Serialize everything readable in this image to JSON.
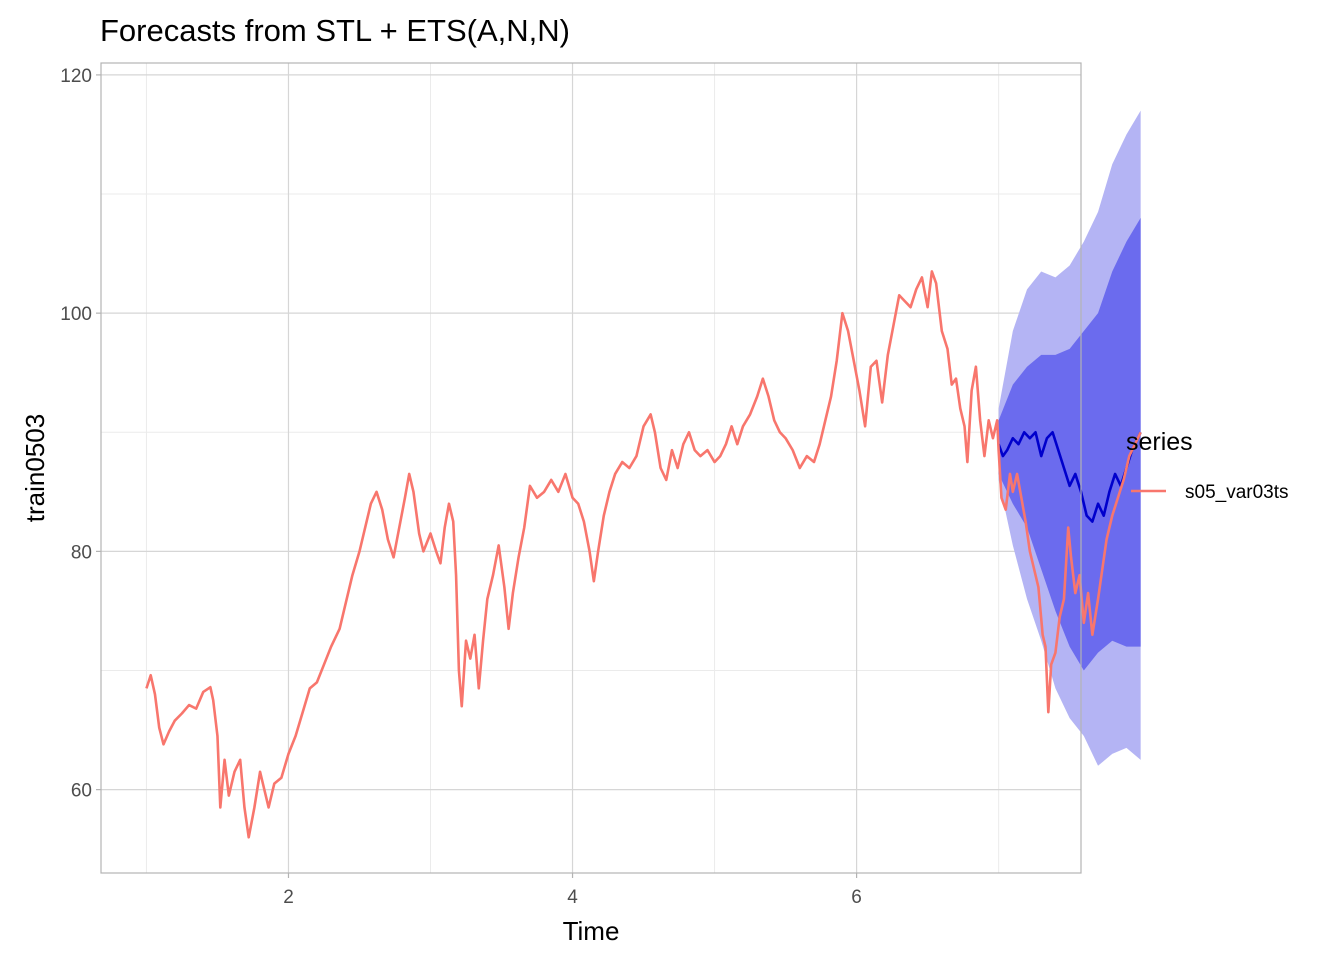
{
  "chart_data": {
    "type": "line",
    "title": "Forecasts from STL +  ETS(A,N,N)",
    "xlabel": "Time",
    "ylabel": "train0503",
    "xlim": [
      0.68,
      7.58
    ],
    "ylim": [
      53,
      121
    ],
    "x_ticks": [
      2,
      4,
      6
    ],
    "y_ticks": [
      60,
      80,
      100,
      120
    ],
    "grid": true,
    "legend": {
      "title": "series",
      "position": "right"
    },
    "series": [
      {
        "name": "s05_var03ts",
        "color": "#F8766D",
        "points": [
          [
            1.0,
            68.5
          ],
          [
            1.03,
            69.6
          ],
          [
            1.06,
            68.0
          ],
          [
            1.09,
            65.2
          ],
          [
            1.12,
            63.8
          ],
          [
            1.16,
            64.9
          ],
          [
            1.2,
            65.8
          ],
          [
            1.25,
            66.4
          ],
          [
            1.3,
            67.1
          ],
          [
            1.35,
            66.8
          ],
          [
            1.4,
            68.2
          ],
          [
            1.45,
            68.6
          ],
          [
            1.47,
            67.5
          ],
          [
            1.5,
            64.5
          ],
          [
            1.52,
            58.5
          ],
          [
            1.55,
            62.5
          ],
          [
            1.58,
            59.5
          ],
          [
            1.62,
            61.5
          ],
          [
            1.66,
            62.5
          ],
          [
            1.69,
            58.5
          ],
          [
            1.72,
            56.0
          ],
          [
            1.76,
            58.5
          ],
          [
            1.8,
            61.5
          ],
          [
            1.83,
            60.0
          ],
          [
            1.86,
            58.5
          ],
          [
            1.9,
            60.5
          ],
          [
            1.95,
            61.0
          ],
          [
            2.0,
            63.0
          ],
          [
            2.05,
            64.5
          ],
          [
            2.1,
            66.5
          ],
          [
            2.15,
            68.5
          ],
          [
            2.2,
            69.0
          ],
          [
            2.25,
            70.5
          ],
          [
            2.3,
            72.0
          ],
          [
            2.36,
            73.5
          ],
          [
            2.4,
            75.5
          ],
          [
            2.45,
            78.0
          ],
          [
            2.5,
            80.0
          ],
          [
            2.55,
            82.5
          ],
          [
            2.58,
            84.0
          ],
          [
            2.62,
            85.0
          ],
          [
            2.66,
            83.5
          ],
          [
            2.7,
            81.0
          ],
          [
            2.74,
            79.5
          ],
          [
            2.78,
            82.0
          ],
          [
            2.82,
            84.5
          ],
          [
            2.85,
            86.5
          ],
          [
            2.88,
            85.0
          ],
          [
            2.92,
            81.5
          ],
          [
            2.95,
            80.0
          ],
          [
            3.0,
            81.5
          ],
          [
            3.04,
            80.0
          ],
          [
            3.07,
            79.0
          ],
          [
            3.1,
            82.0
          ],
          [
            3.13,
            84.0
          ],
          [
            3.16,
            82.5
          ],
          [
            3.18,
            78.0
          ],
          [
            3.2,
            70.0
          ],
          [
            3.22,
            67.0
          ],
          [
            3.25,
            72.5
          ],
          [
            3.28,
            71.0
          ],
          [
            3.31,
            73.0
          ],
          [
            3.34,
            68.5
          ],
          [
            3.37,
            72.5
          ],
          [
            3.4,
            76.0
          ],
          [
            3.44,
            78.0
          ],
          [
            3.48,
            80.5
          ],
          [
            3.52,
            77.0
          ],
          [
            3.55,
            73.5
          ],
          [
            3.58,
            76.5
          ],
          [
            3.62,
            79.5
          ],
          [
            3.66,
            82.0
          ],
          [
            3.7,
            85.5
          ],
          [
            3.75,
            84.5
          ],
          [
            3.8,
            85.0
          ],
          [
            3.85,
            86.0
          ],
          [
            3.9,
            85.0
          ],
          [
            3.95,
            86.5
          ],
          [
            4.0,
            84.5
          ],
          [
            4.04,
            84.0
          ],
          [
            4.08,
            82.5
          ],
          [
            4.12,
            80.0
          ],
          [
            4.15,
            77.5
          ],
          [
            4.18,
            80.0
          ],
          [
            4.22,
            83.0
          ],
          [
            4.26,
            85.0
          ],
          [
            4.3,
            86.5
          ],
          [
            4.35,
            87.5
          ],
          [
            4.4,
            87.0
          ],
          [
            4.45,
            88.0
          ],
          [
            4.5,
            90.5
          ],
          [
            4.55,
            91.5
          ],
          [
            4.58,
            90.0
          ],
          [
            4.62,
            87.0
          ],
          [
            4.66,
            86.0
          ],
          [
            4.7,
            88.5
          ],
          [
            4.74,
            87.0
          ],
          [
            4.78,
            89.0
          ],
          [
            4.82,
            90.0
          ],
          [
            4.86,
            88.5
          ],
          [
            4.9,
            88.0
          ],
          [
            4.95,
            88.5
          ],
          [
            5.0,
            87.5
          ],
          [
            5.04,
            88.0
          ],
          [
            5.08,
            89.0
          ],
          [
            5.12,
            90.5
          ],
          [
            5.16,
            89.0
          ],
          [
            5.2,
            90.5
          ],
          [
            5.25,
            91.5
          ],
          [
            5.3,
            93.0
          ],
          [
            5.34,
            94.5
          ],
          [
            5.38,
            93.0
          ],
          [
            5.42,
            91.0
          ],
          [
            5.46,
            90.0
          ],
          [
            5.5,
            89.5
          ],
          [
            5.55,
            88.5
          ],
          [
            5.6,
            87.0
          ],
          [
            5.65,
            88.0
          ],
          [
            5.7,
            87.5
          ],
          [
            5.74,
            89.0
          ],
          [
            5.78,
            91.0
          ],
          [
            5.82,
            93.0
          ],
          [
            5.86,
            96.0
          ],
          [
            5.9,
            100.0
          ],
          [
            5.94,
            98.5
          ],
          [
            5.98,
            96.0
          ],
          [
            6.02,
            93.5
          ],
          [
            6.06,
            90.5
          ],
          [
            6.1,
            95.5
          ],
          [
            6.14,
            96.0
          ],
          [
            6.18,
            92.5
          ],
          [
            6.22,
            96.5
          ],
          [
            6.26,
            99.0
          ],
          [
            6.3,
            101.5
          ],
          [
            6.34,
            101.0
          ],
          [
            6.38,
            100.5
          ],
          [
            6.42,
            102.0
          ],
          [
            6.46,
            103.0
          ],
          [
            6.5,
            100.5
          ],
          [
            6.53,
            103.5
          ],
          [
            6.56,
            102.5
          ],
          [
            6.6,
            98.5
          ],
          [
            6.64,
            97.0
          ],
          [
            6.67,
            94.0
          ],
          [
            6.7,
            94.5
          ],
          [
            6.73,
            92.0
          ],
          [
            6.76,
            90.5
          ],
          [
            6.78,
            87.5
          ],
          [
            6.81,
            93.5
          ],
          [
            6.84,
            95.5
          ],
          [
            6.87,
            91.0
          ],
          [
            6.9,
            88.0
          ],
          [
            6.93,
            91.0
          ],
          [
            6.96,
            89.5
          ],
          [
            6.99,
            91.0
          ],
          [
            7.0,
            88.5
          ],
          [
            7.02,
            84.5
          ],
          [
            7.05,
            83.5
          ],
          [
            7.08,
            86.5
          ],
          [
            7.1,
            85.0
          ],
          [
            7.13,
            86.5
          ],
          [
            7.16,
            84.5
          ],
          [
            7.19,
            82.5
          ],
          [
            7.22,
            80.0
          ],
          [
            7.25,
            78.5
          ],
          [
            7.28,
            77.0
          ],
          [
            7.31,
            73.0
          ],
          [
            7.33,
            72.0
          ],
          [
            7.35,
            66.5
          ],
          [
            7.37,
            70.5
          ],
          [
            7.4,
            71.5
          ],
          [
            7.43,
            74.5
          ],
          [
            7.46,
            76.0
          ],
          [
            7.49,
            82.0
          ],
          [
            7.51,
            79.5
          ],
          [
            7.54,
            76.5
          ],
          [
            7.57,
            78.0
          ],
          [
            7.6,
            74.0
          ],
          [
            7.63,
            76.5
          ],
          [
            7.66,
            73.0
          ],
          [
            7.7,
            76.0
          ],
          [
            7.73,
            78.5
          ],
          [
            7.76,
            81.0
          ],
          [
            7.8,
            83.0
          ],
          [
            7.84,
            84.5
          ],
          [
            7.88,
            86.0
          ],
          [
            7.92,
            88.0
          ],
          [
            7.96,
            89.0
          ],
          [
            8.0,
            90.0
          ]
        ]
      }
    ],
    "forecast": {
      "color": "#0000CC",
      "band_80_color": "#6B6BEE",
      "band_95_color": "#B4B4F4",
      "points": [
        [
          7.0,
          89.0
        ],
        [
          7.03,
          88.0
        ],
        [
          7.06,
          88.5
        ],
        [
          7.1,
          89.5
        ],
        [
          7.14,
          89.0
        ],
        [
          7.18,
          90.0
        ],
        [
          7.22,
          89.5
        ],
        [
          7.26,
          90.0
        ],
        [
          7.3,
          88.0
        ],
        [
          7.34,
          89.5
        ],
        [
          7.38,
          90.0
        ],
        [
          7.42,
          88.5
        ],
        [
          7.46,
          87.0
        ],
        [
          7.5,
          85.5
        ],
        [
          7.54,
          86.5
        ],
        [
          7.58,
          85.0
        ],
        [
          7.62,
          83.0
        ],
        [
          7.66,
          82.5
        ],
        [
          7.7,
          84.0
        ],
        [
          7.74,
          83.0
        ],
        [
          7.78,
          85.0
        ],
        [
          7.82,
          86.5
        ],
        [
          7.86,
          85.5
        ],
        [
          7.9,
          87.0
        ],
        [
          7.94,
          88.5
        ],
        [
          7.98,
          89.5
        ],
        [
          8.0,
          90.0
        ]
      ],
      "lo80": [
        [
          7.0,
          86.5
        ],
        [
          7.1,
          84.0
        ],
        [
          7.2,
          82.0
        ],
        [
          7.3,
          78.5
        ],
        [
          7.4,
          75.0
        ],
        [
          7.5,
          72.0
        ],
        [
          7.6,
          70.0
        ],
        [
          7.7,
          71.5
        ],
        [
          7.8,
          72.5
        ],
        [
          7.9,
          72.0
        ],
        [
          8.0,
          72.0
        ]
      ],
      "hi80": [
        [
          7.0,
          91.0
        ],
        [
          7.1,
          94.0
        ],
        [
          7.2,
          95.5
        ],
        [
          7.3,
          96.5
        ],
        [
          7.4,
          96.5
        ],
        [
          7.5,
          97.0
        ],
        [
          7.6,
          98.5
        ],
        [
          7.7,
          100.0
        ],
        [
          7.8,
          103.5
        ],
        [
          7.9,
          106.0
        ],
        [
          8.0,
          108.0
        ]
      ],
      "lo95": [
        [
          7.0,
          86.0
        ],
        [
          7.1,
          80.5
        ],
        [
          7.2,
          76.0
        ],
        [
          7.3,
          72.5
        ],
        [
          7.4,
          68.5
        ],
        [
          7.5,
          66.0
        ],
        [
          7.6,
          64.5
        ],
        [
          7.7,
          62.0
        ],
        [
          7.8,
          63.0
        ],
        [
          7.9,
          63.5
        ],
        [
          8.0,
          62.5
        ]
      ],
      "hi95": [
        [
          7.0,
          92.0
        ],
        [
          7.1,
          98.5
        ],
        [
          7.2,
          102.0
        ],
        [
          7.3,
          103.5
        ],
        [
          7.4,
          103.0
        ],
        [
          7.5,
          104.0
        ],
        [
          7.6,
          106.0
        ],
        [
          7.7,
          108.5
        ],
        [
          7.8,
          112.5
        ],
        [
          7.9,
          115.0
        ],
        [
          8.0,
          117.0
        ]
      ]
    }
  }
}
